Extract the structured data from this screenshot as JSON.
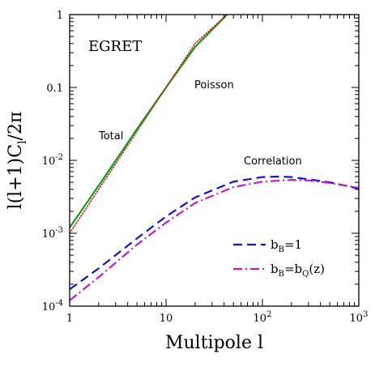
{
  "chart_data": {
    "type": "line",
    "title": "",
    "xlabel": "Multipole l",
    "ylabel": "l(l+1)C_l/2π",
    "x_scale": "log",
    "y_scale": "log",
    "xlim": [
      1,
      1000
    ],
    "ylim": [
      0.0001,
      1
    ],
    "x_ticks": [
      {
        "value": 1,
        "label": "1"
      },
      {
        "value": 10,
        "label": "10"
      },
      {
        "value": 100,
        "label": "10^2"
      },
      {
        "value": 1000,
        "label": "10^3"
      }
    ],
    "y_ticks": [
      {
        "value": 0.0001,
        "label": "10^-4"
      },
      {
        "value": 0.001,
        "label": "10^-3"
      },
      {
        "value": 0.01,
        "label": "10^-2"
      },
      {
        "value": 0.1,
        "label": "0.1"
      },
      {
        "value": 1,
        "label": "1"
      }
    ],
    "annotations": {
      "experiment": "EGRET",
      "poisson": "Poisson",
      "total": "Total",
      "correlation": "Correlation"
    },
    "grid": false,
    "legend_position": "bottom-right",
    "series": [
      {
        "key": "total",
        "color": "#1a9a1a",
        "style": "solid",
        "x": [
          1,
          2,
          5,
          10,
          20,
          43
        ],
        "y": [
          0.0012,
          0.0045,
          0.027,
          0.1,
          0.36,
          1.0
        ]
      },
      {
        "key": "poisson",
        "color": "#e01818",
        "style": "dotted",
        "x": [
          1,
          2,
          5,
          10,
          20,
          43
        ],
        "y": [
          0.001,
          0.004,
          0.025,
          0.1,
          0.4,
          1.0
        ]
      },
      {
        "name": "b_B=1",
        "color": "#1414d0",
        "style": "dashed",
        "x": [
          1,
          2,
          5,
          10,
          20,
          50,
          100,
          150,
          200,
          300,
          500,
          1000
        ],
        "y": [
          0.00017,
          0.00033,
          0.00085,
          0.0017,
          0.0031,
          0.0051,
          0.0059,
          0.006,
          0.0059,
          0.0055,
          0.005,
          0.0041
        ]
      },
      {
        "name": "b_B=b_Q(z)",
        "color": "#c818c8",
        "style": "dashdot",
        "x": [
          1,
          2,
          5,
          10,
          20,
          50,
          100,
          200,
          300,
          500,
          1000
        ],
        "y": [
          0.00012,
          0.00025,
          0.0007,
          0.0014,
          0.0026,
          0.0043,
          0.0051,
          0.0054,
          0.0053,
          0.0049,
          0.0042
        ]
      }
    ],
    "legend": [
      {
        "series": 2,
        "prefix": "b",
        "sub": "B",
        "rest": "=1"
      },
      {
        "series": 3,
        "prefix": "b",
        "sub": "B",
        "mid": "=b",
        "sub2": "Q",
        "rest": "(z)"
      }
    ]
  }
}
